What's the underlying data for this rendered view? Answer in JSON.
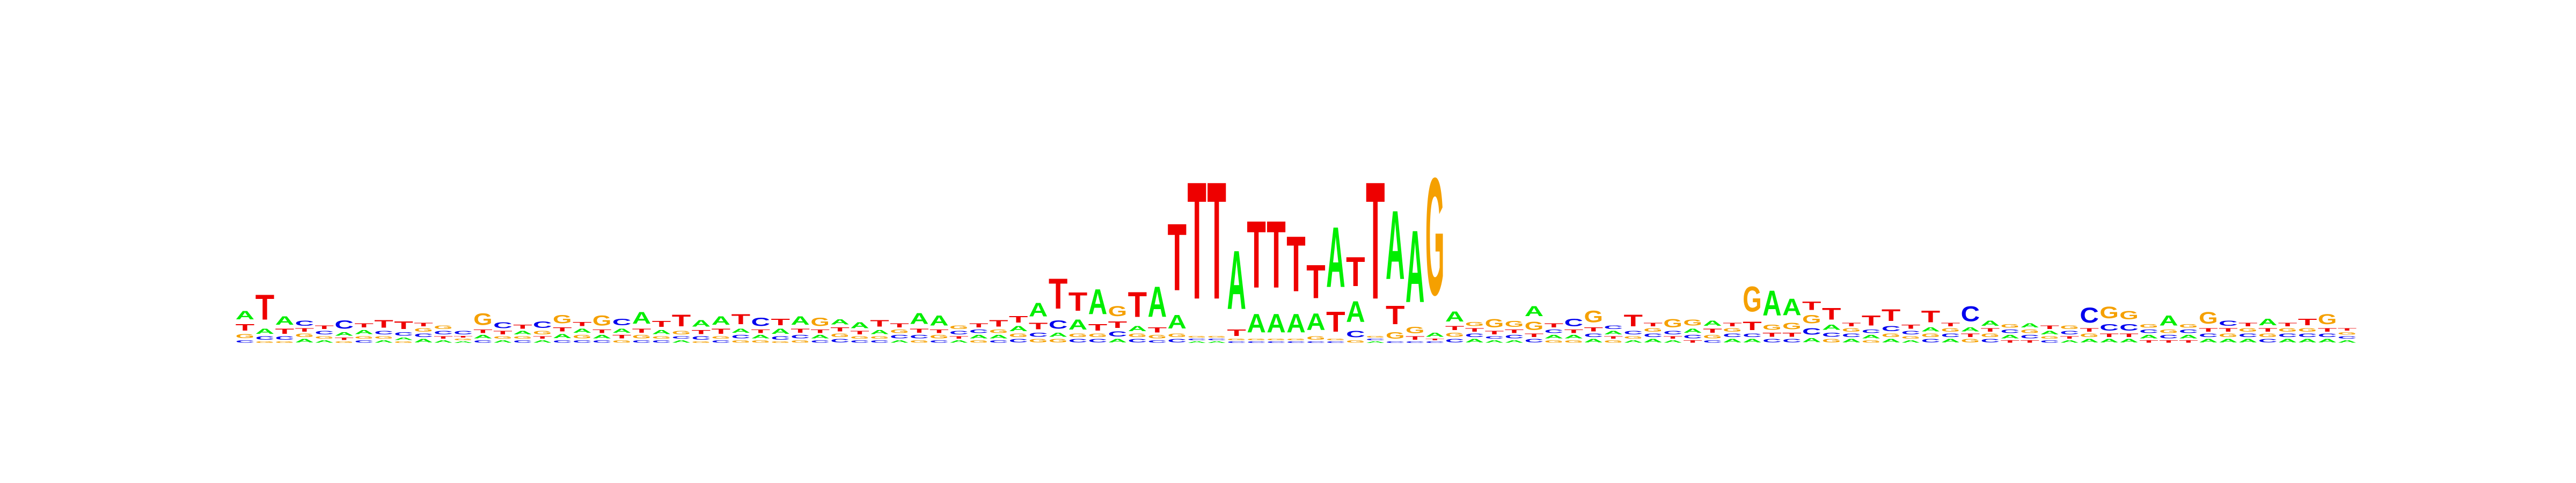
{
  "chart_data": {
    "type": "sequence-logo",
    "title": "",
    "xlabel": "",
    "ylabel": "",
    "ylim": [
      0,
      2
    ],
    "alphabet": [
      "A",
      "C",
      "G",
      "T"
    ],
    "colors": {
      "A": "#00ee00",
      "C": "#0000ee",
      "G": "#f5a000",
      "T": "#ee0000"
    },
    "positions": [
      {
        "A": 0.1,
        "C": 0.03,
        "G": 0.05,
        "T": 0.08
      },
      {
        "A": 0.06,
        "C": 0.04,
        "G": 0.02,
        "T": 0.3
      },
      {
        "A": 0.1,
        "C": 0.04,
        "G": 0.02,
        "T": 0.06
      },
      {
        "A": 0.04,
        "C": 0.06,
        "G": 0.04,
        "T": 0.04
      },
      {
        "A": 0.03,
        "C": 0.04,
        "G": 0.03,
        "T": 0.04
      },
      {
        "A": 0.04,
        "C": 0.1,
        "G": 0.02,
        "T": 0.03
      },
      {
        "A": 0.05,
        "C": 0.03,
        "G": 0.03,
        "T": 0.05
      },
      {
        "A": 0.03,
        "C": 0.04,
        "G": 0.03,
        "T": 0.09
      },
      {
        "A": 0.03,
        "C": 0.04,
        "G": 0.02,
        "T": 0.09
      },
      {
        "A": 0.04,
        "C": 0.04,
        "G": 0.04,
        "T": 0.04
      },
      {
        "A": 0.03,
        "C": 0.04,
        "G": 0.04,
        "T": 0.03
      },
      {
        "A": 0.02,
        "C": 0.04,
        "G": 0.02,
        "T": 0.02
      },
      {
        "A": 0.04,
        "C": 0.03,
        "G": 0.14,
        "T": 0.04
      },
      {
        "A": 0.03,
        "C": 0.07,
        "G": 0.03,
        "T": 0.04
      },
      {
        "A": 0.04,
        "C": 0.03,
        "G": 0.03,
        "T": 0.05
      },
      {
        "A": 0.03,
        "C": 0.08,
        "G": 0.04,
        "T": 0.03
      },
      {
        "A": 0.05,
        "C": 0.03,
        "G": 0.1,
        "T": 0.05
      },
      {
        "A": 0.05,
        "C": 0.03,
        "G": 0.04,
        "T": 0.05
      },
      {
        "A": 0.04,
        "C": 0.03,
        "G": 0.12,
        "T": 0.04
      },
      {
        "A": 0.05,
        "C": 0.08,
        "G": 0.03,
        "T": 0.04
      },
      {
        "A": 0.14,
        "C": 0.03,
        "G": 0.04,
        "T": 0.05
      },
      {
        "A": 0.05,
        "C": 0.03,
        "G": 0.03,
        "T": 0.07
      },
      {
        "A": 0.03,
        "C": 0.03,
        "G": 0.04,
        "T": 0.14
      },
      {
        "A": 0.08,
        "C": 0.04,
        "G": 0.02,
        "T": 0.05
      },
      {
        "A": 0.1,
        "C": 0.03,
        "G": 0.03,
        "T": 0.06
      },
      {
        "A": 0.05,
        "C": 0.04,
        "G": 0.03,
        "T": 0.12
      },
      {
        "A": 0.04,
        "C": 0.1,
        "G": 0.03,
        "T": 0.04
      },
      {
        "A": 0.06,
        "C": 0.04,
        "G": 0.02,
        "T": 0.08
      },
      {
        "A": 0.1,
        "C": 0.04,
        "G": 0.03,
        "T": 0.05
      },
      {
        "A": 0.04,
        "C": 0.03,
        "G": 0.1,
        "T": 0.04
      },
      {
        "A": 0.06,
        "C": 0.04,
        "G": 0.04,
        "T": 0.05
      },
      {
        "A": 0.07,
        "C": 0.03,
        "G": 0.03,
        "T": 0.04
      },
      {
        "A": 0.05,
        "C": 0.03,
        "G": 0.03,
        "T": 0.08
      },
      {
        "A": 0.03,
        "C": 0.04,
        "G": 0.04,
        "T": 0.05
      },
      {
        "A": 0.13,
        "C": 0.04,
        "G": 0.03,
        "T": 0.05
      },
      {
        "A": 0.12,
        "C": 0.03,
        "G": 0.04,
        "T": 0.04
      },
      {
        "A": 0.03,
        "C": 0.04,
        "G": 0.04,
        "T": 0.03
      },
      {
        "A": 0.04,
        "C": 0.04,
        "G": 0.03,
        "T": 0.05
      },
      {
        "A": 0.04,
        "C": 0.03,
        "G": 0.04,
        "T": 0.08
      },
      {
        "A": 0.06,
        "C": 0.04,
        "G": 0.04,
        "T": 0.08
      },
      {
        "A": 0.16,
        "C": 0.05,
        "G": 0.04,
        "T": 0.08
      },
      {
        "A": 0.05,
        "C": 0.1,
        "G": 0.04,
        "T": 0.36
      },
      {
        "A": 0.12,
        "C": 0.04,
        "G": 0.04,
        "T": 0.22
      },
      {
        "A": 0.3,
        "C": 0.04,
        "G": 0.04,
        "T": 0.08
      },
      {
        "A": 0.04,
        "C": 0.06,
        "G": 0.12,
        "T": 0.08
      },
      {
        "A": 0.06,
        "C": 0.04,
        "G": 0.04,
        "T": 0.3
      },
      {
        "A": 0.36,
        "C": 0.03,
        "G": 0.04,
        "T": 0.06
      },
      {
        "A": 0.16,
        "C": 0.04,
        "G": 0.04,
        "T": 0.8
      },
      {
        "A": 0.02,
        "C": 0.02,
        "G": 0.02,
        "T": 1.4
      },
      {
        "A": 0.02,
        "C": 0.02,
        "G": 0.02,
        "T": 1.4
      },
      {
        "A": 0.7,
        "C": 0.02,
        "G": 0.02,
        "T": 0.08
      },
      {
        "A": 0.22,
        "C": 0.02,
        "G": 0.02,
        "T": 0.8
      },
      {
        "A": 0.22,
        "C": 0.02,
        "G": 0.02,
        "T": 0.8
      },
      {
        "A": 0.22,
        "C": 0.02,
        "G": 0.02,
        "T": 0.66
      },
      {
        "A": 0.2,
        "C": 0.02,
        "G": 0.04,
        "T": 0.4
      },
      {
        "A": 0.72,
        "C": 0.02,
        "G": 0.02,
        "T": 0.24
      },
      {
        "A": 0.25,
        "C": 0.08,
        "G": 0.03,
        "T": 0.35
      },
      {
        "A": 0.02,
        "C": 0.02,
        "G": 0.02,
        "T": 1.4
      },
      {
        "A": 0.82,
        "C": 0.02,
        "G": 0.08,
        "T": 0.22
      },
      {
        "A": 0.86,
        "C": 0.02,
        "G": 0.08,
        "T": 0.04
      },
      {
        "A": 0.05,
        "C": 0.02,
        "G": 1.4,
        "T": 0.02
      },
      {
        "A": 0.12,
        "C": 0.04,
        "G": 0.05,
        "T": 0.05
      },
      {
        "A": 0.04,
        "C": 0.04,
        "G": 0.05,
        "T": 0.04
      },
      {
        "A": 0.03,
        "C": 0.03,
        "G": 0.1,
        "T": 0.04
      },
      {
        "A": 0.03,
        "C": 0.04,
        "G": 0.07,
        "T": 0.04
      },
      {
        "A": 0.12,
        "C": 0.04,
        "G": 0.1,
        "T": 0.04
      },
      {
        "A": 0.04,
        "C": 0.04,
        "G": 0.03,
        "T": 0.05
      },
      {
        "A": 0.04,
        "C": 0.09,
        "G": 0.03,
        "T": 0.04
      },
      {
        "A": 0.04,
        "C": 0.04,
        "G": 0.14,
        "T": 0.05
      },
      {
        "A": 0.04,
        "C": 0.04,
        "G": 0.03,
        "T": 0.03
      },
      {
        "A": 0.03,
        "C": 0.04,
        "G": 0.03,
        "T": 0.14
      },
      {
        "A": 0.04,
        "C": 0.04,
        "G": 0.04,
        "T": 0.04
      },
      {
        "A": 0.03,
        "C": 0.04,
        "G": 0.1,
        "T": 0.03
      },
      {
        "A": 0.05,
        "C": 0.04,
        "G": 0.07,
        "T": 0.03
      },
      {
        "A": 0.06,
        "C": 0.03,
        "G": 0.04,
        "T": 0.05
      },
      {
        "A": 0.04,
        "C": 0.04,
        "G": 0.04,
        "T": 0.04
      },
      {
        "A": 0.04,
        "C": 0.04,
        "G": 0.3,
        "T": 0.1
      },
      {
        "A": 0.3,
        "C": 0.04,
        "G": 0.06,
        "T": 0.05
      },
      {
        "A": 0.2,
        "C": 0.04,
        "G": 0.08,
        "T": 0.05
      },
      {
        "A": 0.05,
        "C": 0.08,
        "G": 0.1,
        "T": 0.1
      },
      {
        "A": 0.06,
        "C": 0.05,
        "G": 0.04,
        "T": 0.14
      },
      {
        "A": 0.04,
        "C": 0.04,
        "G": 0.04,
        "T": 0.04
      },
      {
        "A": 0.04,
        "C": 0.04,
        "G": 0.03,
        "T": 0.12
      },
      {
        "A": 0.04,
        "C": 0.06,
        "G": 0.04,
        "T": 0.14
      },
      {
        "A": 0.03,
        "C": 0.04,
        "G": 0.03,
        "T": 0.05
      },
      {
        "A": 0.05,
        "C": 0.04,
        "G": 0.04,
        "T": 0.14
      },
      {
        "A": 0.04,
        "C": 0.04,
        "G": 0.04,
        "T": 0.04
      },
      {
        "A": 0.05,
        "C": 0.18,
        "G": 0.04,
        "T": 0.04
      },
      {
        "A": 0.06,
        "C": 0.04,
        "G": 0.04,
        "T": 0.04
      },
      {
        "A": 0.04,
        "C": 0.04,
        "G": 0.04,
        "T": 0.03
      },
      {
        "A": 0.05,
        "C": 0.04,
        "G": 0.04,
        "T": 0.03
      },
      {
        "A": 0.04,
        "C": 0.03,
        "G": 0.03,
        "T": 0.04
      },
      {
        "A": 0.03,
        "C": 0.04,
        "G": 0.04,
        "T": 0.03
      },
      {
        "A": 0.04,
        "C": 0.18,
        "G": 0.04,
        "T": 0.04
      },
      {
        "A": 0.04,
        "C": 0.08,
        "G": 0.14,
        "T": 0.04
      },
      {
        "A": 0.04,
        "C": 0.08,
        "G": 0.1,
        "T": 0.04
      },
      {
        "A": 0.04,
        "C": 0.04,
        "G": 0.04,
        "T": 0.03
      },
      {
        "A": 0.12,
        "C": 0.04,
        "G": 0.04,
        "T": 0.03
      },
      {
        "A": 0.04,
        "C": 0.04,
        "G": 0.04,
        "T": 0.03
      },
      {
        "A": 0.04,
        "C": 0.04,
        "G": 0.14,
        "T": 0.04
      },
      {
        "A": 0.04,
        "C": 0.06,
        "G": 0.04,
        "T": 0.04
      },
      {
        "A": 0.04,
        "C": 0.04,
        "G": 0.04,
        "T": 0.04
      },
      {
        "A": 0.08,
        "C": 0.04,
        "G": 0.04,
        "T": 0.04
      },
      {
        "A": 0.04,
        "C": 0.04,
        "G": 0.04,
        "T": 0.04
      },
      {
        "A": 0.04,
        "C": 0.04,
        "G": 0.04,
        "T": 0.08
      },
      {
        "A": 0.04,
        "C": 0.04,
        "G": 0.12,
        "T": 0.04
      },
      {
        "A": 0.03,
        "C": 0.03,
        "G": 0.03,
        "T": 0.03
      }
    ]
  }
}
